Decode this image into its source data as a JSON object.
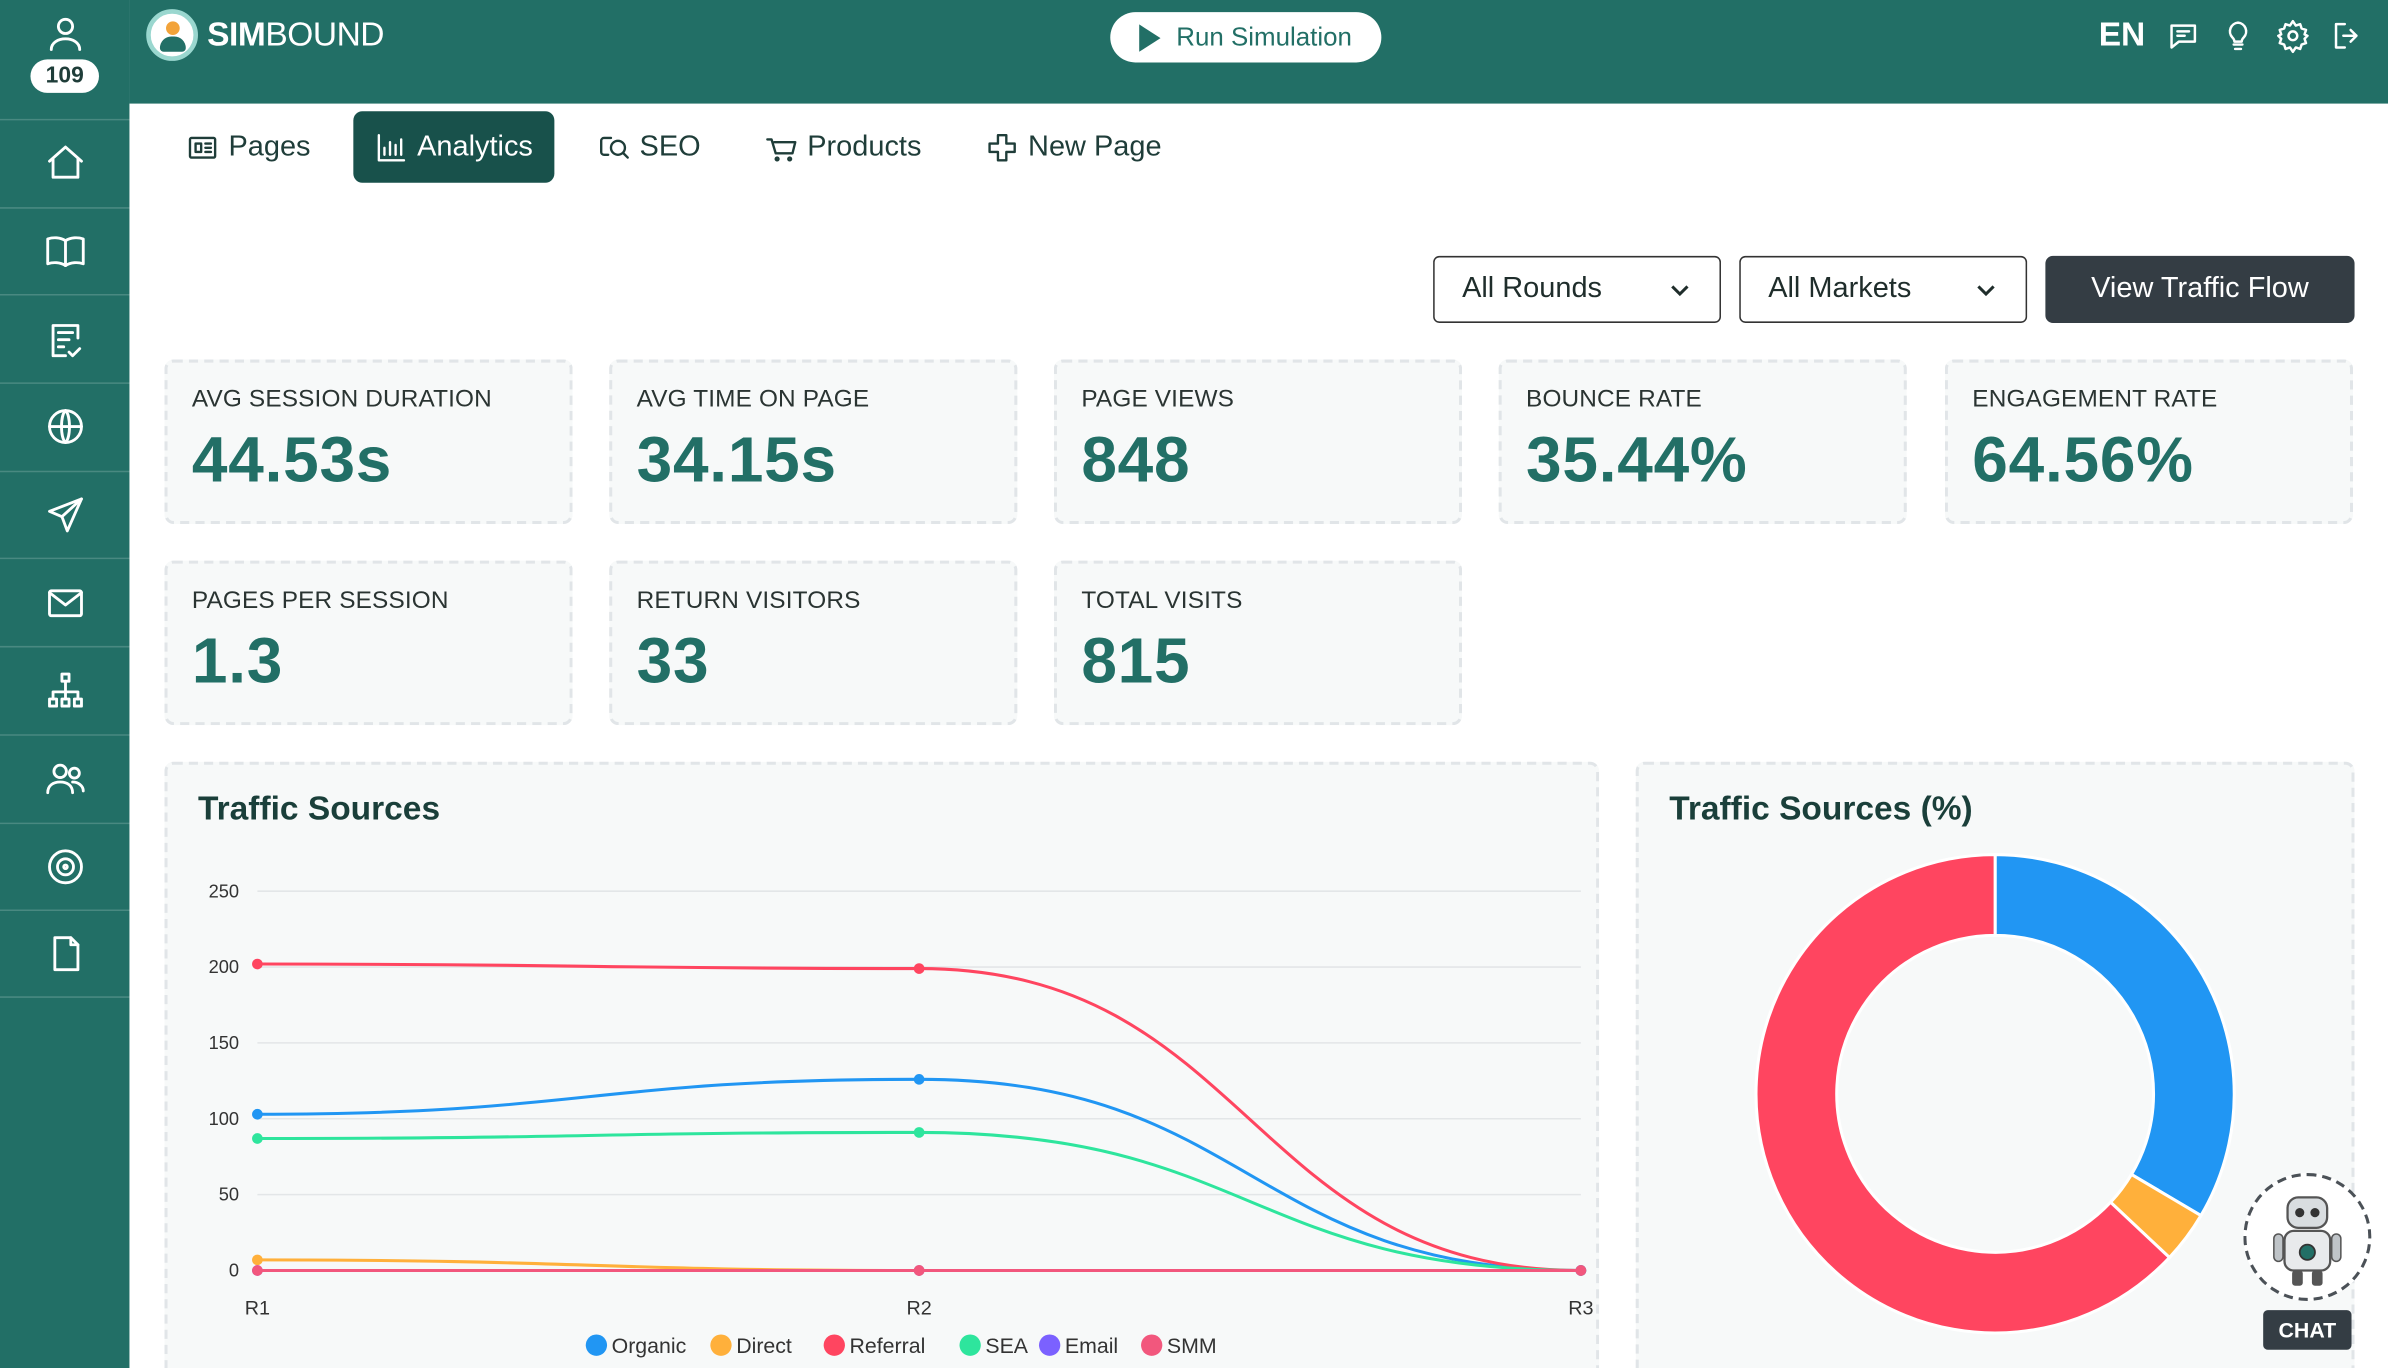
{
  "user": {
    "points": "109"
  },
  "brand": {
    "logo_bold": "SIM",
    "logo_rest": "BOUND"
  },
  "header": {
    "run_label": "Run Simulation",
    "language": "EN"
  },
  "tabs": [
    {
      "label": "Pages",
      "icon": "pages-icon"
    },
    {
      "label": "Analytics",
      "icon": "bar-chart-icon",
      "active": true
    },
    {
      "label": "SEO",
      "icon": "search-icon"
    },
    {
      "label": "Products",
      "icon": "cart-icon"
    },
    {
      "label": "New Page",
      "icon": "plus-icon"
    }
  ],
  "filters": {
    "rounds": "All Rounds",
    "markets": "All Markets",
    "view_button": "View Traffic Flow"
  },
  "stats": [
    {
      "label": "AVG SESSION DURATION",
      "value": "44.53s"
    },
    {
      "label": "AVG TIME ON PAGE",
      "value": "34.15s"
    },
    {
      "label": "PAGE VIEWS",
      "value": "848"
    },
    {
      "label": "BOUNCE RATE",
      "value": "35.44%"
    },
    {
      "label": "ENGAGEMENT RATE",
      "value": "64.56%"
    },
    {
      "label": "PAGES PER SESSION",
      "value": "1.3"
    },
    {
      "label": "RETURN VISITORS",
      "value": "33"
    },
    {
      "label": "TOTAL VISITS",
      "value": "815"
    }
  ],
  "chat": {
    "label": "CHAT"
  },
  "chart_data": [
    {
      "type": "line",
      "title": "Traffic Sources",
      "x": [
        "R1",
        "R2",
        "R3"
      ],
      "ylim": [
        0,
        250
      ],
      "yticks": [
        0,
        50,
        100,
        150,
        200,
        250
      ],
      "grid": true,
      "legend": "bottom",
      "series": [
        {
          "name": "Organic",
          "color": "#2196f3",
          "values": [
            103,
            126,
            0
          ]
        },
        {
          "name": "Direct",
          "color": "#ffb03b",
          "values": [
            7,
            0,
            0
          ]
        },
        {
          "name": "Referral",
          "color": "#ff4560",
          "values": [
            202,
            199,
            0
          ]
        },
        {
          "name": "SEA",
          "color": "#2ee59d",
          "values": [
            87,
            91,
            0
          ]
        },
        {
          "name": "Email",
          "color": "#7b61ff",
          "values": [
            0,
            0,
            0
          ]
        },
        {
          "name": "SMM",
          "color": "#f2577d",
          "values": [
            0,
            0,
            0
          ]
        }
      ]
    },
    {
      "type": "pie",
      "title": "Traffic Sources (%)",
      "donut": true,
      "slices": [
        {
          "name": "Organic",
          "color": "#2196f3",
          "value": 33.5
        },
        {
          "name": "Direct",
          "color": "#ffb03b",
          "value": 3.5
        },
        {
          "name": "Referral",
          "color": "#ff4560",
          "value": 63.0
        }
      ]
    }
  ]
}
